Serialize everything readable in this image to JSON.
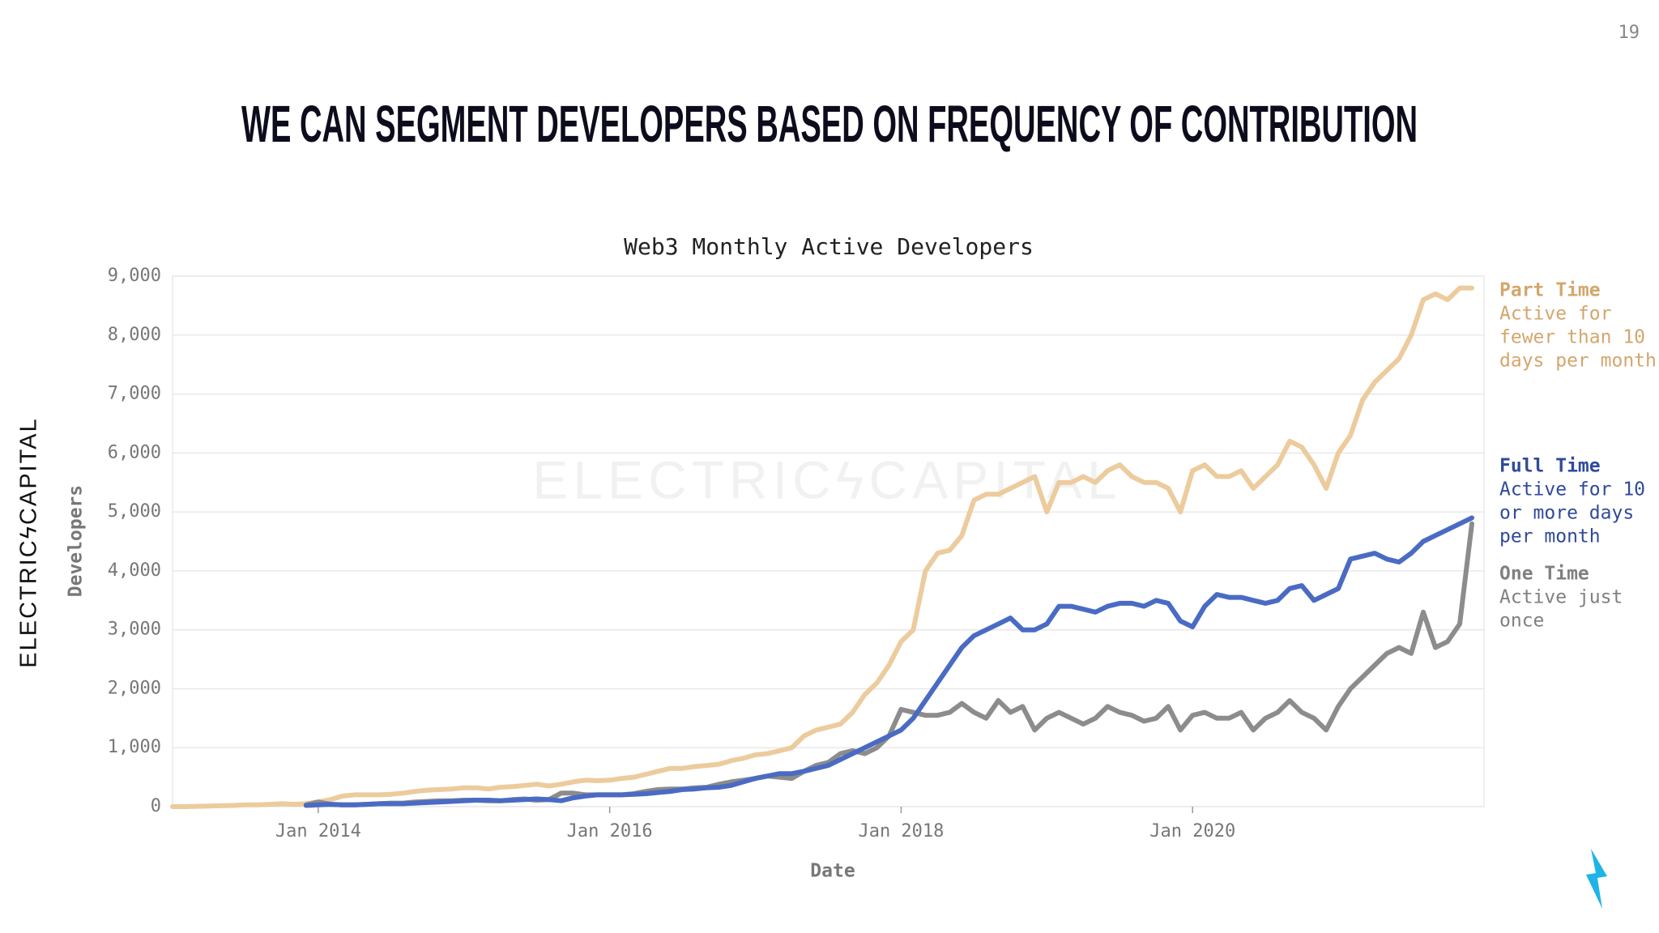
{
  "page_number": "19",
  "headline": "WE CAN SEGMENT DEVELOPERS BASED ON FREQUENCY OF CONTRIBUTION",
  "logo": "ELECTRICϟCAPITAL",
  "watermark": "ELECTRICϟCAPITAL",
  "chart_data": {
    "type": "line",
    "title": "Web3 Monthly Active Developers",
    "x_label": "Date",
    "y_label": "Developers",
    "x": [
      "2013-01",
      "2013-02",
      "2013-03",
      "2013-04",
      "2013-05",
      "2013-06",
      "2013-07",
      "2013-08",
      "2013-09",
      "2013-10",
      "2013-11",
      "2013-12",
      "2014-01",
      "2014-02",
      "2014-03",
      "2014-04",
      "2014-05",
      "2014-06",
      "2014-07",
      "2014-08",
      "2014-09",
      "2014-10",
      "2014-11",
      "2014-12",
      "2015-01",
      "2015-02",
      "2015-03",
      "2015-04",
      "2015-05",
      "2015-06",
      "2015-07",
      "2015-08",
      "2015-09",
      "2015-10",
      "2015-11",
      "2015-12",
      "2016-01",
      "2016-02",
      "2016-03",
      "2016-04",
      "2016-05",
      "2016-06",
      "2016-07",
      "2016-08",
      "2016-09",
      "2016-10",
      "2016-11",
      "2016-12",
      "2017-01",
      "2017-02",
      "2017-03",
      "2017-04",
      "2017-05",
      "2017-06",
      "2017-07",
      "2017-08",
      "2017-09",
      "2017-10",
      "2017-11",
      "2017-12",
      "2018-01",
      "2018-02",
      "2018-03",
      "2018-04",
      "2018-05",
      "2018-06",
      "2018-07",
      "2018-08",
      "2018-09",
      "2018-10",
      "2018-11",
      "2018-12",
      "2019-01",
      "2019-02",
      "2019-03",
      "2019-04",
      "2019-05",
      "2019-06",
      "2019-07",
      "2019-08",
      "2019-09",
      "2019-10",
      "2019-11",
      "2019-12",
      "2020-01",
      "2020-02",
      "2020-03",
      "2020-04",
      "2020-05",
      "2020-06",
      "2020-07",
      "2020-08",
      "2020-09",
      "2020-10",
      "2020-11",
      "2020-12",
      "2021-01",
      "2021-02",
      "2021-03",
      "2021-04",
      "2021-05",
      "2021-06",
      "2021-07",
      "2021-08",
      "2021-09",
      "2021-10",
      "2021-11",
      "2021-12"
    ],
    "series": [
      {
        "name": "Part Time",
        "description": [
          "Active for",
          "fewer than 10",
          "days per month"
        ],
        "color": "#eccb9d",
        "label_color": "#d4a66c",
        "values": [
          0,
          0,
          5,
          10,
          15,
          20,
          30,
          30,
          40,
          50,
          40,
          50,
          80,
          120,
          180,
          200,
          200,
          200,
          210,
          230,
          260,
          280,
          290,
          300,
          320,
          320,
          300,
          330,
          340,
          360,
          380,
          350,
          380,
          420,
          450,
          440,
          450,
          480,
          500,
          550,
          600,
          650,
          650,
          680,
          700,
          720,
          780,
          820,
          880,
          900,
          950,
          1000,
          1200,
          1300,
          1350,
          1400,
          1600,
          1900,
          2100,
          2400,
          2800,
          3000,
          4000,
          4300,
          4350,
          4600,
          5200,
          5300,
          5300,
          5400,
          5500,
          5600,
          5000,
          5500,
          5500,
          5600,
          5500,
          5700,
          5800,
          5600,
          5500,
          5500,
          5400,
          5000,
          5700,
          5800,
          5600,
          5600,
          5700,
          5400,
          5600,
          5800,
          6200,
          6100,
          5800,
          5400,
          6000,
          6300,
          6900,
          7200,
          7400,
          7600,
          8000,
          8600,
          8700,
          8600,
          8800,
          8800
        ]
      },
      {
        "name": "Full Time",
        "description": [
          "Active for 10",
          "or more days",
          "per month"
        ],
        "color": "#4a6bc4",
        "label_color": "#2f4a9a",
        "values": [
          null,
          null,
          null,
          null,
          null,
          null,
          null,
          null,
          null,
          null,
          null,
          20,
          30,
          40,
          30,
          30,
          40,
          50,
          50,
          50,
          60,
          70,
          80,
          90,
          100,
          110,
          110,
          100,
          110,
          120,
          130,
          120,
          100,
          150,
          180,
          200,
          200,
          200,
          210,
          220,
          240,
          260,
          290,
          300,
          320,
          330,
          360,
          420,
          480,
          520,
          560,
          560,
          600,
          650,
          700,
          800,
          900,
          1000,
          1100,
          1200,
          1300,
          1500,
          1800,
          2100,
          2400,
          2700,
          2900,
          3000,
          3100,
          3200,
          3000,
          3000,
          3100,
          3400,
          3400,
          3350,
          3300,
          3400,
          3450,
          3450,
          3400,
          3500,
          3450,
          3150,
          3050,
          3400,
          3600,
          3550,
          3550,
          3500,
          3450,
          3500,
          3700,
          3750,
          3500,
          3600,
          3700,
          4200,
          4250,
          4300,
          4200,
          4150,
          4300,
          4500,
          4600,
          4700,
          4800,
          4900
        ]
      },
      {
        "name": "One Time",
        "description": [
          "Active just",
          "once"
        ],
        "color": "#8c8c8c",
        "label_color": "#808080",
        "values": [
          null,
          null,
          null,
          null,
          null,
          null,
          null,
          null,
          null,
          null,
          null,
          30,
          80,
          40,
          30,
          30,
          40,
          50,
          60,
          60,
          80,
          90,
          100,
          100,
          110,
          110,
          100,
          100,
          120,
          130,
          110,
          120,
          230,
          230,
          200,
          200,
          200,
          200,
          220,
          260,
          290,
          300,
          300,
          320,
          330,
          380,
          420,
          450,
          480,
          520,
          500,
          480,
          600,
          700,
          750,
          900,
          950,
          900,
          1000,
          1200,
          1650,
          1600,
          1550,
          1550,
          1600,
          1750,
          1600,
          1500,
          1800,
          1600,
          1700,
          1300,
          1500,
          1600,
          1500,
          1400,
          1500,
          1700,
          1600,
          1550,
          1450,
          1500,
          1700,
          1300,
          1550,
          1600,
          1500,
          1500,
          1600,
          1300,
          1500,
          1600,
          1800,
          1600,
          1500,
          1300,
          1700,
          2000,
          2200,
          2400,
          2600,
          2700,
          2600,
          3300,
          2700,
          2800,
          3100,
          4800
        ]
      }
    ],
    "xlim": [
      "2013-01",
      "2021-12"
    ],
    "xticks": [
      {
        "value": "2014-01",
        "label": "Jan 2014"
      },
      {
        "value": "2016-01",
        "label": "Jan 2016"
      },
      {
        "value": "2018-01",
        "label": "Jan 2018"
      },
      {
        "value": "2020-01",
        "label": "Jan 2020"
      }
    ],
    "ylim": [
      0,
      9000
    ],
    "yticks": [
      0,
      {
        "value": 1000,
        "label": "1,000"
      },
      {
        "value": 2000,
        "label": "2,000"
      },
      {
        "value": 3000,
        "label": "3,000"
      },
      {
        "value": 4000,
        "label": "4,000"
      },
      {
        "value": 5000,
        "label": "5,000"
      },
      {
        "value": 6000,
        "label": "6,000"
      },
      {
        "value": 7000,
        "label": "7,000"
      },
      {
        "value": 8000,
        "label": "8,000"
      },
      {
        "value": 9000,
        "label": "9,000"
      }
    ],
    "grid": true
  }
}
